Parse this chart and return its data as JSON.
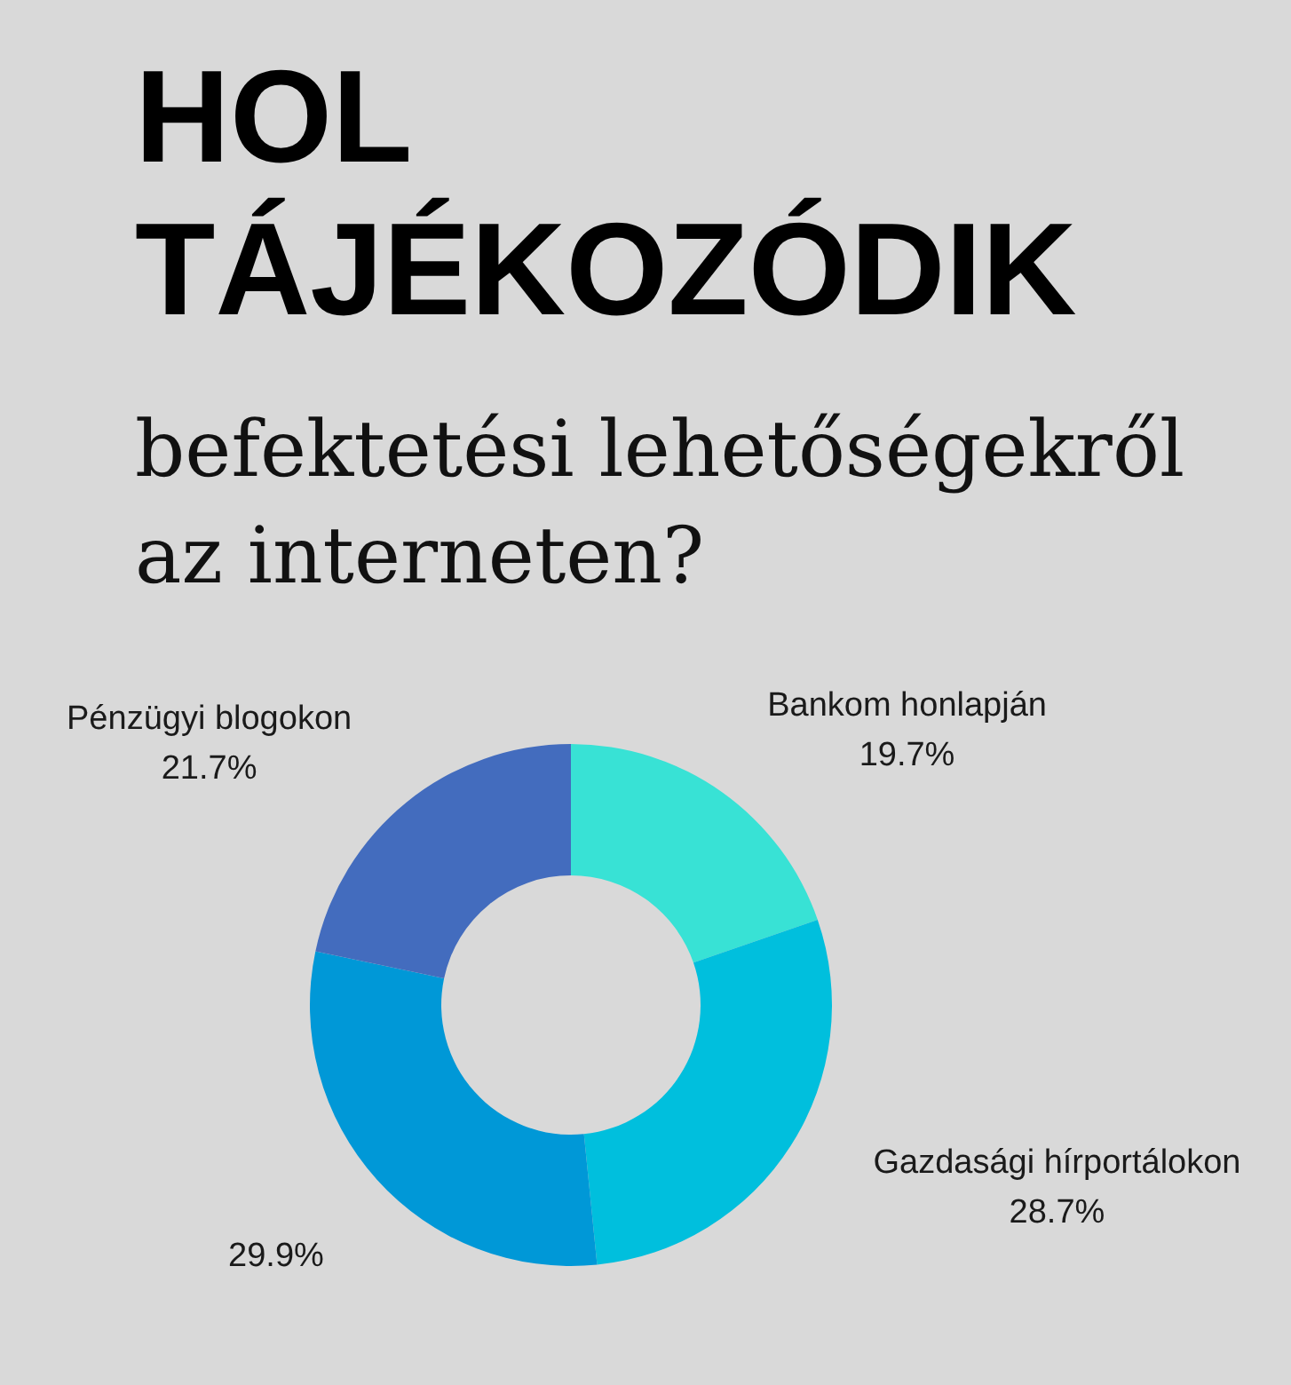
{
  "chart_data": {
    "type": "donut",
    "title": "HOL TÁJÉKOZÓDIK",
    "subtitle": "befektetési lehetőségekről az interneten?",
    "categories": [
      "Bankom honlapján",
      "Gazdasági hírportálokon",
      null,
      "Pénzügyi blogokon"
    ],
    "values": [
      19.7,
      28.7,
      29.9,
      21.7
    ],
    "value_labels": [
      "19.7%",
      "28.7%",
      "29.9%",
      "21.7%"
    ],
    "colors": [
      "#38e2d5",
      "#00bfdd",
      "#0098d7",
      "#436cbe"
    ]
  }
}
